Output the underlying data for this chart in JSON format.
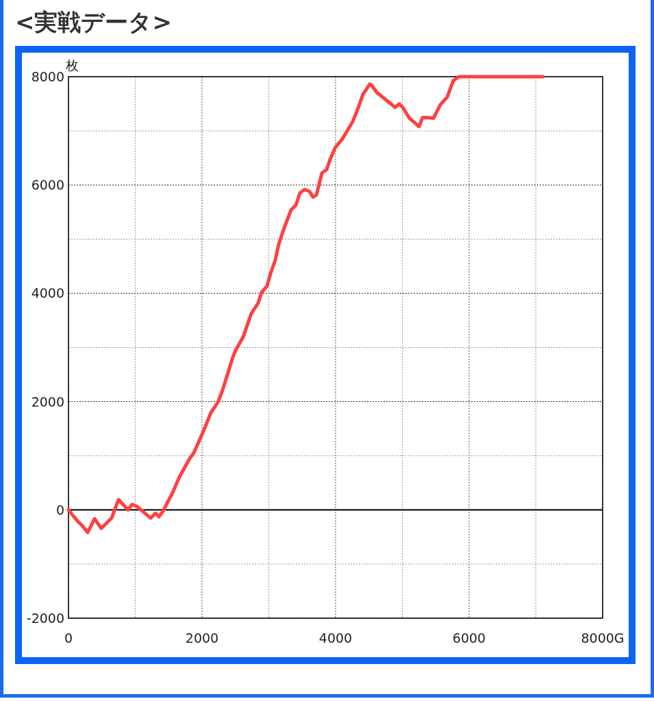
{
  "chart_data": {
    "type": "line",
    "title": "<実戦データ>",
    "ylabel": "枚",
    "xlim": [
      0,
      8000
    ],
    "ylim": [
      -2000,
      8000
    ],
    "xticks": [
      0,
      {
        "value": 1000,
        "label": null
      },
      2000,
      {
        "value": 3000,
        "label": null
      },
      4000,
      {
        "value": 5000,
        "label": null
      },
      6000,
      {
        "value": 7000,
        "label": null
      },
      {
        "value": 8000,
        "label": "8000G"
      }
    ],
    "yticks": [
      -2000,
      {
        "value": -1000,
        "label": null
      },
      0,
      {
        "value": 1000,
        "label": null
      },
      2000,
      {
        "value": 3000,
        "label": null
      },
      4000,
      {
        "value": 5000,
        "label": null
      },
      6000,
      {
        "value": 7000,
        "label": null
      },
      8000
    ],
    "grid": true,
    "line_style": "solid",
    "marker": "none",
    "ref_lines": [
      {
        "axis": "y",
        "value": 0,
        "color": "#000000",
        "line_style": "solid"
      }
    ],
    "series": [
      {
        "color": "#ff4040",
        "x": [
          0,
          123,
          205,
          287,
          390,
          492,
          646,
          749,
          892,
          954,
          1026,
          1231,
          1303,
          1354,
          1415,
          1559,
          1662,
          1815,
          1877,
          2021,
          2133,
          2236,
          2308,
          2462,
          2513,
          2615,
          2738,
          2841,
          2892,
          2974,
          3026,
          3097,
          3149,
          3231,
          3333,
          3405,
          3467,
          3538,
          3610,
          3662,
          3713,
          3795,
          3867,
          3918,
          4000,
          4103,
          4256,
          4338,
          4410,
          4513,
          4544,
          4615,
          4892,
          4954,
          5005,
          5108,
          5251,
          5303,
          5385,
          5467,
          5569,
          5672,
          5764,
          5846,
          7108
        ],
        "values": [
          0,
          -190,
          -290,
          -417,
          -164,
          -341,
          -152,
          190,
          0,
          101,
          63,
          -152,
          -63,
          -126,
          -25,
          316,
          607,
          948,
          1049,
          1454,
          1795,
          1985,
          2212,
          2819,
          2971,
          3186,
          3628,
          3818,
          4020,
          4134,
          4362,
          4614,
          4905,
          5209,
          5537,
          5626,
          5853,
          5917,
          5879,
          5777,
          5815,
          6220,
          6283,
          6473,
          6700,
          6852,
          7168,
          7421,
          7674,
          7863,
          7838,
          7712,
          7434,
          7497,
          7434,
          7231,
          7080,
          7244,
          7244,
          7231,
          7484,
          7623,
          7927,
          8000,
          8000
        ]
      }
    ]
  }
}
